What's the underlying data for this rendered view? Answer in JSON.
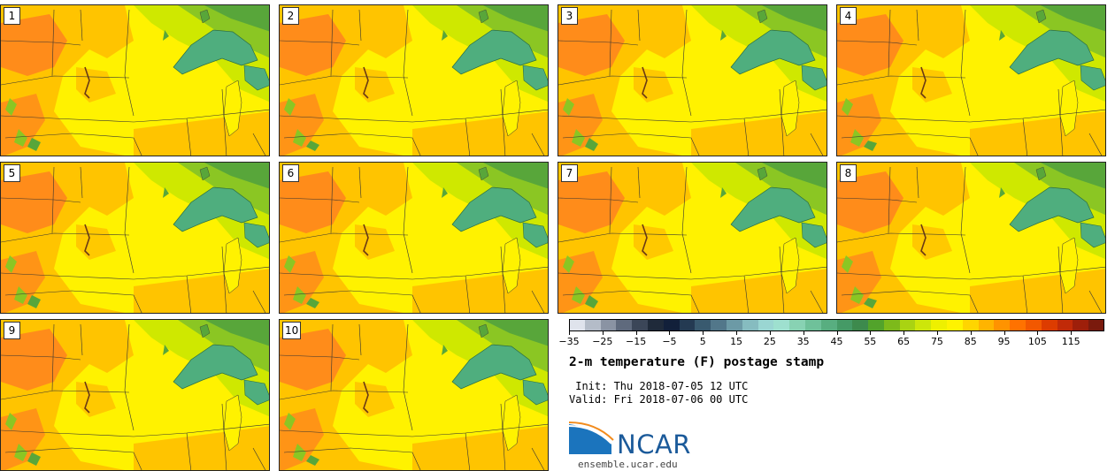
{
  "panels": [
    {
      "label": "1"
    },
    {
      "label": "2"
    },
    {
      "label": "3"
    },
    {
      "label": "4"
    },
    {
      "label": "5"
    },
    {
      "label": "6"
    },
    {
      "label": "7"
    },
    {
      "label": "8"
    },
    {
      "label": "9"
    },
    {
      "label": "10"
    }
  ],
  "colorbar": {
    "colors": [
      "#dfe3ec",
      "#b4bcc8",
      "#8a93a3",
      "#5f6a7d",
      "#3b4658",
      "#1f2a3a",
      "#12203a",
      "#243a52",
      "#395a6f",
      "#52778a",
      "#6c9aa6",
      "#86bcc0",
      "#9ad6d2",
      "#9ee0cf",
      "#88d2b3",
      "#6fc19a",
      "#58ae80",
      "#459a66",
      "#3d8a4d",
      "#52a32b",
      "#7dba1b",
      "#a9d312",
      "#cde60a",
      "#eef000",
      "#fff300",
      "#ffd500",
      "#ffb400",
      "#ff9300",
      "#ff7200",
      "#f25800",
      "#dd3c00",
      "#c12a08",
      "#9e1f0a",
      "#7a1a0d"
    ],
    "tick_labels": [
      "−35",
      "−25",
      "−15",
      "−5",
      "5",
      "15",
      "25",
      "35",
      "45",
      "55",
      "65",
      "75",
      "85",
      "95",
      "105",
      "115"
    ],
    "min": -35,
    "max": 125
  },
  "title": "2-m temperature (F) postage stamp",
  "init_text": " Init: Thu 2018-07-05 12 UTC",
  "valid_text": "Valid: Fri 2018-07-06 00 UTC",
  "logo": {
    "wordmark": "NCAR",
    "url": "ensemble.ucar.edu",
    "brand_color": "#1b5a9a"
  },
  "map_colors": {
    "hot": "#ff8c1a",
    "warm": "#ffc400",
    "mild": "#fff200",
    "cool": "#cfe800",
    "green": "#8bc623",
    "dark_green": "#58a63a",
    "lake": "#4fae7e"
  }
}
